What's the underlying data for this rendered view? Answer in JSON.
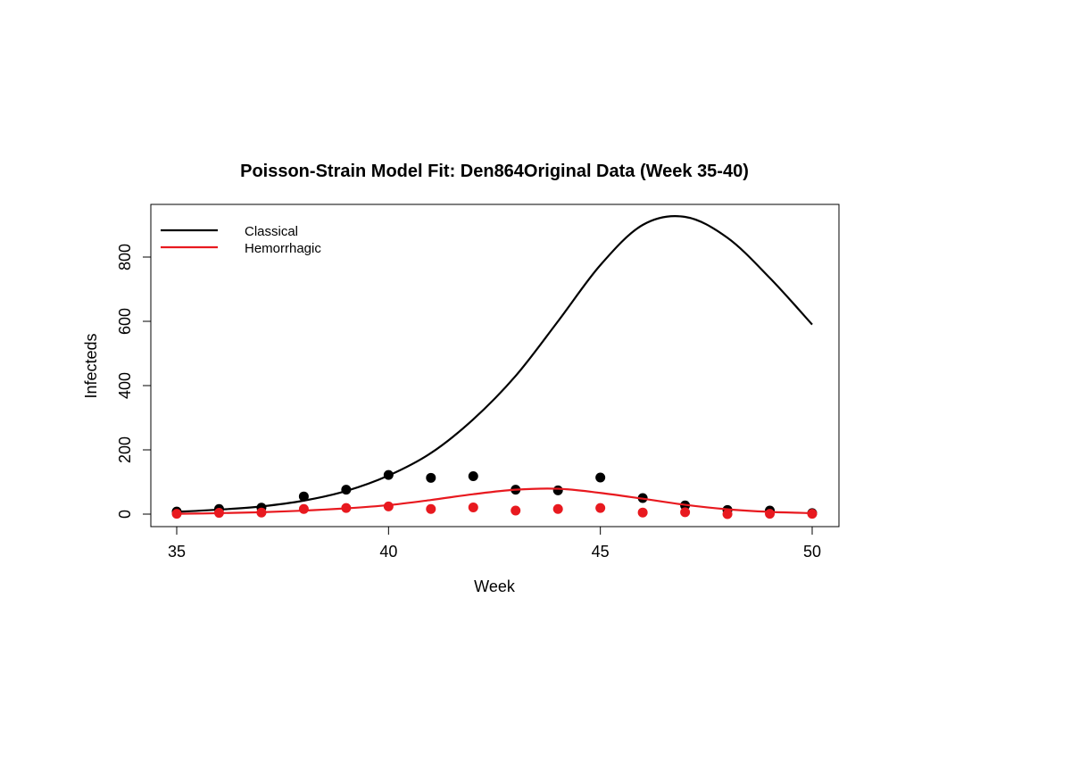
{
  "chart_data": {
    "type": "line",
    "title": "Poisson-Strain Model Fit: Den864Original Data (Week 35-40)",
    "xlabel": "Week",
    "ylabel": "Infecteds",
    "xlim": [
      35,
      50
    ],
    "ylim": [
      0,
      950
    ],
    "x_ticks": [
      35,
      40,
      45,
      50
    ],
    "y_ticks": [
      0,
      200,
      400,
      600,
      800
    ],
    "grid": false,
    "legend_position": "top-left",
    "series": [
      {
        "name": "Classical",
        "color": "#000000",
        "fit_line": {
          "x": [
            35,
            36,
            37,
            38,
            39,
            40,
            41,
            42,
            43,
            44,
            45,
            46,
            47,
            48,
            49,
            50
          ],
          "y": [
            7,
            14,
            24,
            42,
            72,
            120,
            190,
            295,
            430,
            600,
            775,
            900,
            925,
            860,
            735,
            590
          ]
        },
        "observed": {
          "x": [
            35,
            36,
            37,
            38,
            39,
            40,
            41,
            42,
            43,
            44,
            45,
            46,
            47,
            48,
            49,
            50
          ],
          "y": [
            8,
            16,
            20,
            55,
            76,
            122,
            113,
            118,
            76,
            74,
            114,
            50,
            27,
            13,
            11,
            3
          ]
        }
      },
      {
        "name": "Hemorrhagic",
        "color": "#e8191f",
        "fit_line": {
          "x": [
            35,
            36,
            37,
            38,
            39,
            40,
            41,
            42,
            43,
            44,
            45,
            46,
            47,
            48,
            49,
            50
          ],
          "y": [
            1,
            3,
            6,
            11,
            18,
            28,
            44,
            62,
            76,
            79,
            66,
            48,
            29,
            15,
            7,
            3
          ]
        },
        "observed": {
          "x": [
            35,
            36,
            37,
            38,
            39,
            40,
            41,
            42,
            43,
            44,
            45,
            46,
            47,
            48,
            49,
            50
          ],
          "y": [
            1,
            4,
            5,
            16,
            19,
            24,
            16,
            21,
            11,
            16,
            19,
            5,
            6,
            0,
            1,
            1
          ]
        }
      }
    ]
  }
}
